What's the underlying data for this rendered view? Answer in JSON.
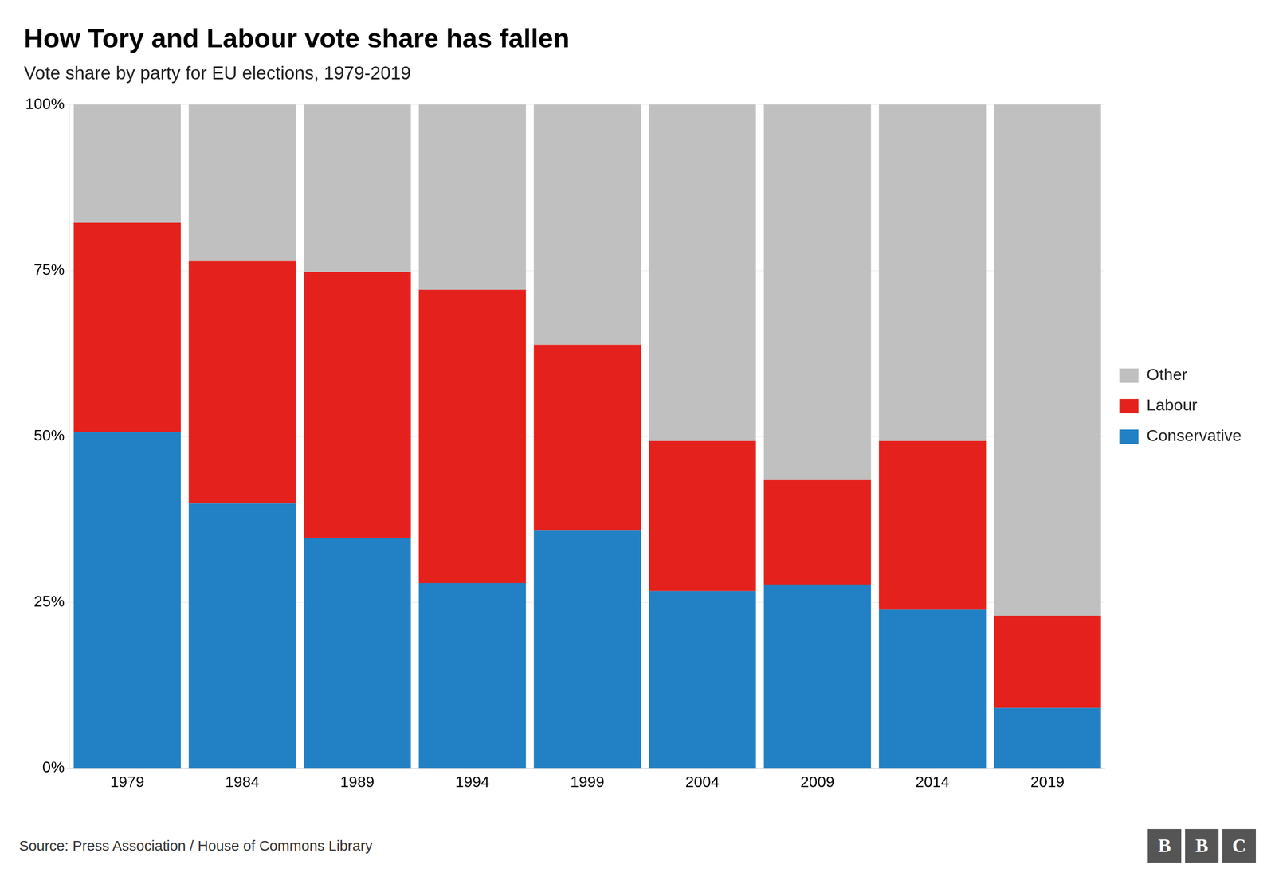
{
  "chart_data": {
    "type": "bar",
    "title": "How Tory and Labour vote share has fallen",
    "subtitle": "Vote share by party for EU elections, 1979-2019",
    "source": "Source: Press Association / House of Commons Library",
    "logo": "BBC",
    "categories": [
      "1979",
      "1984",
      "1989",
      "1994",
      "1999",
      "2004",
      "2009",
      "2014",
      "2019"
    ],
    "series": [
      {
        "name": "Conservative",
        "color": "#2281C4",
        "values": [
          50.6,
          39.9,
          34.7,
          27.9,
          35.8,
          26.7,
          27.7,
          23.9,
          9.1
        ]
      },
      {
        "name": "Labour",
        "color": "#E4211C",
        "values": [
          31.6,
          36.5,
          40.1,
          44.2,
          28.0,
          22.6,
          15.7,
          25.4,
          13.9
        ]
      },
      {
        "name": "Other",
        "color": "#C0C0C0",
        "values": [
          17.8,
          23.6,
          25.2,
          27.9,
          36.2,
          50.7,
          56.6,
          50.7,
          77.0
        ]
      }
    ],
    "stacked": true,
    "ylim": [
      0,
      100
    ],
    "yticks": [
      {
        "value": 0,
        "label": "0%"
      },
      {
        "value": 25,
        "label": "25%"
      },
      {
        "value": 50,
        "label": "50%"
      },
      {
        "value": 75,
        "label": "75%"
      },
      {
        "value": 100,
        "label": "100%"
      }
    ],
    "grid": true,
    "legend": "right"
  }
}
